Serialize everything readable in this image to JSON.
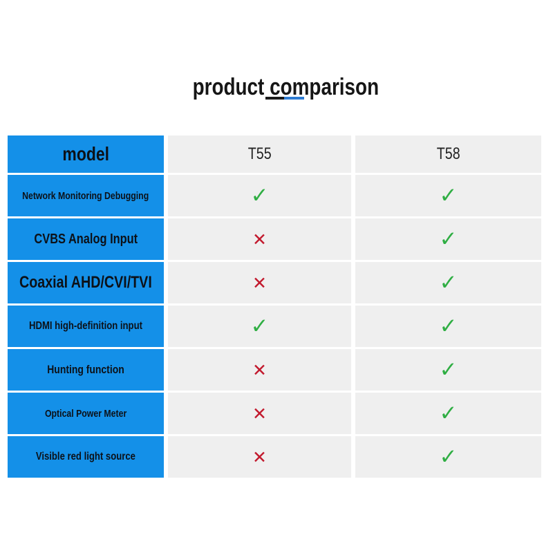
{
  "title": "product comparison",
  "underline": {
    "black_color": "#1a1a1a",
    "blue_color": "#2e7cd3"
  },
  "colors": {
    "header_blue": "#1490e8",
    "cell_gray": "#efefef",
    "check_green": "#2fae43",
    "cross_red": "#c2192d",
    "label_text_on_blue": "#0c1118"
  },
  "marks": {
    "check": "✓",
    "cross": "✕"
  },
  "table": {
    "header": {
      "model_label": "model",
      "columns": [
        "T55",
        "T58"
      ]
    },
    "rows": [
      {
        "label": "Network Monitoring Debugging",
        "t55": "✓",
        "t58": "✓"
      },
      {
        "label": "CVBS Analog Input",
        "t55": "✕",
        "t58": "✓"
      },
      {
        "label": "Coaxial AHD/CVI/TVI",
        "t55": "✕",
        "t58": "✓"
      },
      {
        "label": "HDMI high-definition input",
        "t55": "✓",
        "t58": "✓"
      },
      {
        "label": "Hunting function",
        "t55": "✕",
        "t58": "✓"
      },
      {
        "label": "Optical Power Meter",
        "t55": "✕",
        "t58": "✓"
      },
      {
        "label": "Visible red light source",
        "t55": "✕",
        "t58": "✓"
      }
    ]
  },
  "chart_data": {
    "type": "table",
    "title": "product comparison",
    "columns": [
      "model",
      "T55",
      "T58"
    ],
    "rows": [
      [
        "Network Monitoring Debugging",
        "yes",
        "yes"
      ],
      [
        "CVBS Analog Input",
        "no",
        "yes"
      ],
      [
        "Coaxial AHD/CVI/TVI",
        "no",
        "yes"
      ],
      [
        "HDMI high-definition input",
        "yes",
        "yes"
      ],
      [
        "Hunting function",
        "no",
        "yes"
      ],
      [
        "Optical Power Meter",
        "no",
        "yes"
      ],
      [
        "Visible red light source",
        "no",
        "yes"
      ]
    ]
  }
}
